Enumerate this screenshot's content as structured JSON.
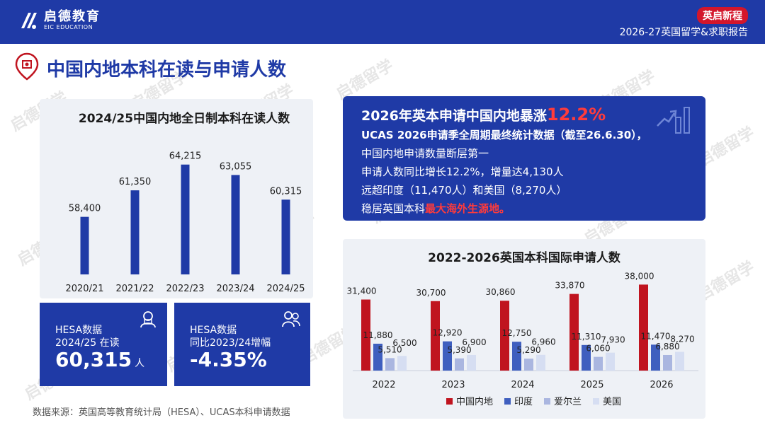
{
  "header": {
    "logo_cn": "启德教育",
    "logo_en": "EIC EDUCATION",
    "tag": "英启新程",
    "report": "2026-27英国留学&求职报告"
  },
  "page_title": "中国内地本科在读与申请人数",
  "callout": {
    "title_prefix": "2026年英本申请中国内地暴涨",
    "title_pct": "12.2%",
    "line1": "UCAS 2026申请季全周期最终统计数据（截至26.6.30），",
    "line2": "中国内地申请数量断层第一",
    "line3": "申请人数同比增长12.2%，增量达4,130人",
    "line4": "远超印度（11,470人）和美国（8,270人）",
    "line5_prefix": "稳居英国本科",
    "line5_red": "最大海外生源地。"
  },
  "cards": {
    "c1_l1": "HESA数据",
    "c1_l2": "2024/25 在读",
    "c1_value": "60,315",
    "c1_unit": "人",
    "c2_l1": "HESA数据",
    "c2_l2": "同比2023/24增幅",
    "c2_value": "-4.35%"
  },
  "source": "数据来源：英国高等教育统计局（HESA）、UCAS本科申请数据",
  "watermark": "启德留学",
  "watermark_en": "EIC EDUCATION",
  "colors": {
    "brand_blue": "#1f3aa6",
    "mainland_red": "#c0141f",
    "india_blue": "#3f5fbf",
    "ireland": "#aab6e0",
    "usa": "#d6def2"
  },
  "chart_data": [
    {
      "type": "bar",
      "title": "2024/25中国内地全日制本科在读人数",
      "categories": [
        "2020/21",
        "2021/22",
        "2022/23",
        "2023/24",
        "2024/25"
      ],
      "values": [
        58400,
        61350,
        64215,
        63055,
        60315
      ],
      "value_labels": [
        "58,400",
        "61,350",
        "64,215",
        "63,055",
        "60,315"
      ],
      "ylim": [
        52000,
        66000
      ],
      "color": "#1f3aa6"
    },
    {
      "type": "bar",
      "title": "2022-2026英国本科国际申请人数",
      "categories": [
        "2022",
        "2023",
        "2024",
        "2025",
        "2026"
      ],
      "series": [
        {
          "name": "中国内地",
          "color": "#c0141f",
          "values": [
            31400,
            30700,
            30860,
            33870,
            38000
          ],
          "labels": [
            "31,400",
            "30,700",
            "30,860",
            "33,870",
            "38,000"
          ]
        },
        {
          "name": "印度",
          "color": "#3f5fbf",
          "values": [
            11880,
            12920,
            12750,
            11310,
            11470
          ],
          "labels": [
            "11,880",
            "12,920",
            "12,750",
            "11,310",
            "11,470"
          ]
        },
        {
          "name": "爱尔兰",
          "color": "#aab6e0",
          "values": [
            5510,
            5390,
            5290,
            6060,
            6880
          ],
          "labels": [
            "5,510",
            "5,390",
            "5,290",
            "6,060",
            "6,880"
          ]
        },
        {
          "name": "美国",
          "color": "#d6def2",
          "values": [
            6500,
            6900,
            6960,
            7930,
            8270
          ],
          "labels": [
            "6,500",
            "6,900",
            "6,960",
            "7,930",
            "8,270"
          ]
        }
      ],
      "ylim": [
        0,
        40000
      ],
      "legend": "bottom"
    }
  ]
}
